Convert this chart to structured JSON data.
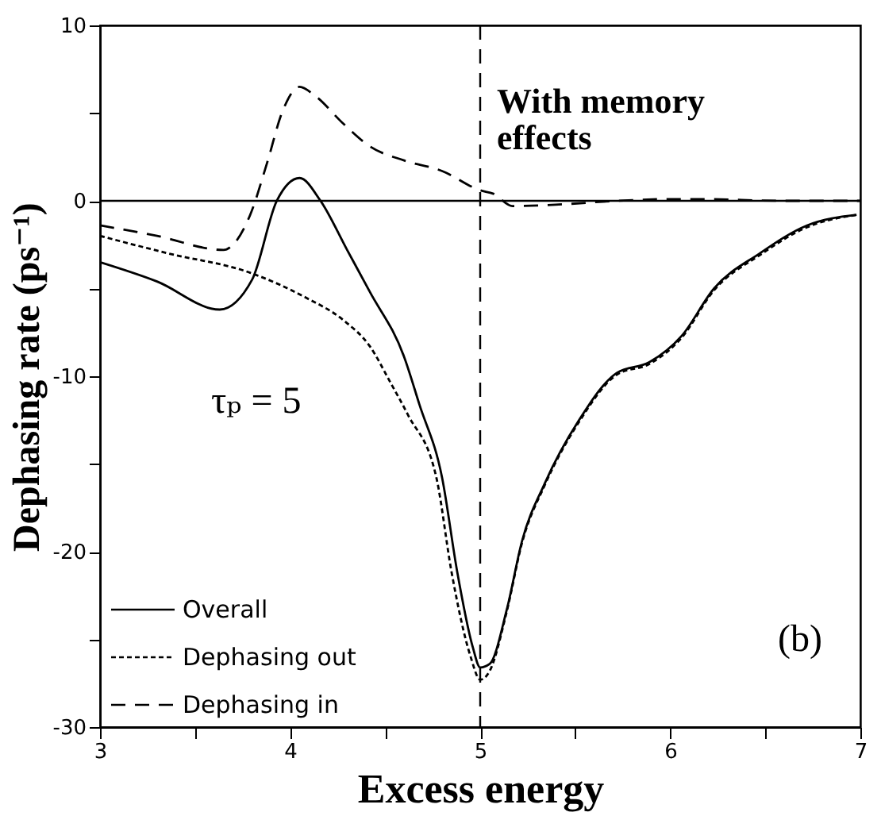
{
  "chart_data": {
    "type": "line",
    "xlabel": "Excess energy",
    "ylabel": "Dephasing rate (ps⁻¹)",
    "xlim": [
      3,
      7
    ],
    "ylim": [
      -30,
      10
    ],
    "xticks": [
      3,
      {
        "value": 3.5,
        "label": null
      },
      4,
      {
        "value": 4.5,
        "label": null
      },
      5,
      {
        "value": 5.5,
        "label": null
      },
      6,
      {
        "value": 6.5,
        "label": null
      },
      7
    ],
    "yticks": [
      {
        "value": -30,
        "label": "-30"
      },
      {
        "value": -25,
        "label": null
      },
      -20,
      {
        "value": -15,
        "label": null
      },
      -10,
      {
        "value": -5,
        "label": null
      },
      0,
      {
        "value": 5,
        "label": null
      },
      10
    ],
    "grid": false,
    "legend": "bottom left",
    "marker": "none",
    "annotations": [
      "With memory effects",
      "τₚ = 5",
      "(b)"
    ],
    "ref_lines": [
      {
        "axis": "y",
        "value": 0,
        "label": null,
        "color": "#000000",
        "line_style": "solid"
      },
      {
        "axis": "x",
        "value": 5,
        "label": null,
        "color": "#000000",
        "line_style": "dashed"
      }
    ],
    "series": [
      {
        "name": "Overall",
        "color": "#000000",
        "line_style": "solid",
        "x": [
          3,
          3.3,
          3.63,
          3.8,
          3.93,
          4.05,
          4.16,
          4.3,
          4.42,
          4.6,
          4.68,
          4.8,
          4.88,
          4.96,
          5.0,
          5.05,
          5.14,
          5.22,
          5.34,
          5.52,
          5.72,
          5.89,
          6.06,
          6.23,
          6.47,
          6.72,
          6.98
        ],
        "values": [
          -3.5,
          -4.6,
          -6.2,
          -4.5,
          0,
          1.3,
          0,
          -2.8,
          -5.2,
          -8.9,
          -11.6,
          -15.8,
          -21.2,
          -25.4,
          -26.6,
          -26.4,
          -23.3,
          -19.4,
          -16.1,
          -12.5,
          -9.8,
          -9.2,
          -7.7,
          -5.0,
          -3.0,
          -1.4,
          -0.8
        ]
      },
      {
        "name": "Dephasing out",
        "color": "#000000",
        "line_style": "dotted",
        "x": [
          3,
          3.36,
          3.79,
          4.08,
          4.28,
          4.42,
          4.53,
          4.62,
          4.77,
          4.85,
          4.95,
          5.0,
          5.05,
          5.14,
          5.22,
          5.34,
          5.52,
          5.72,
          5.89,
          6.06,
          6.23,
          6.47,
          6.72,
          6.98
        ],
        "values": [
          -2.0,
          -3.0,
          -4.1,
          -5.5,
          -6.8,
          -8.3,
          -10.4,
          -12.2,
          -15.8,
          -21.2,
          -26.0,
          -27.3,
          -26.8,
          -23.4,
          -19.5,
          -16.2,
          -12.6,
          -9.9,
          -9.3,
          -7.8,
          -5.1,
          -3.1,
          -1.5,
          -0.8
        ]
      },
      {
        "name": "Dephasing in",
        "color": "#000000",
        "line_style": "dashed",
        "x": [
          3,
          3.3,
          3.65,
          3.7,
          3.79,
          3.88,
          3.96,
          4.05,
          4.13,
          4.28,
          4.42,
          4.6,
          4.8,
          5.0,
          5.07,
          5.17,
          5.43,
          5.72,
          6.0,
          6.15,
          6.6,
          7
        ],
        "values": [
          -1.4,
          -2.0,
          -2.8,
          -2.5,
          -0.8,
          2.2,
          5.1,
          6.5,
          6.0,
          4.4,
          3.1,
          2.3,
          1.7,
          0.6,
          0.4,
          -0.3,
          -0.2,
          0,
          0.1,
          0.1,
          0,
          0
        ]
      }
    ]
  }
}
